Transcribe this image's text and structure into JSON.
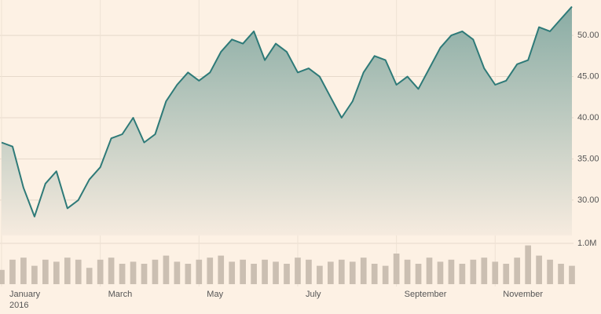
{
  "chart_data": [
    {
      "type": "area",
      "categories": [
        "January",
        null,
        null,
        null,
        null,
        null,
        null,
        null,
        null,
        "March",
        null,
        null,
        null,
        null,
        null,
        null,
        null,
        null,
        "May",
        null,
        null,
        null,
        null,
        null,
        null,
        null,
        null,
        "July",
        null,
        null,
        null,
        null,
        null,
        null,
        null,
        null,
        "September",
        null,
        null,
        null,
        null,
        null,
        null,
        null,
        null,
        "November",
        null,
        null,
        null,
        null,
        null,
        null,
        null
      ],
      "x_sublabel": "2016",
      "values": [
        37,
        36.5,
        31.5,
        28,
        32,
        33.5,
        29,
        30,
        32.5,
        34,
        37.5,
        38,
        40,
        37,
        38,
        42,
        44,
        45.5,
        44.5,
        45.5,
        48,
        49.5,
        49,
        50.5,
        47,
        49,
        48,
        45.5,
        46,
        45,
        42.5,
        40,
        42,
        45.5,
        47.5,
        47,
        44,
        45,
        43.5,
        46,
        48.5,
        50,
        50.5,
        49.5,
        46,
        44,
        44.5,
        46.5,
        47,
        51,
        50.5,
        52,
        53.5
      ],
      "color": "#2e7a78",
      "ylim": [
        25.7,
        54.3
      ],
      "yticks": [
        {
          "value": 30,
          "label": "30.00"
        },
        {
          "value": 35,
          "label": "35.00"
        },
        {
          "value": 40,
          "label": "40.00"
        },
        {
          "value": 45,
          "label": "45.00"
        },
        {
          "value": 50,
          "label": "50.00"
        }
      ],
      "grid": true
    },
    {
      "type": "bar",
      "values": [
        0.35,
        0.6,
        0.65,
        0.45,
        0.6,
        0.55,
        0.65,
        0.6,
        0.4,
        0.6,
        0.65,
        0.5,
        0.55,
        0.5,
        0.6,
        0.7,
        0.55,
        0.5,
        0.6,
        0.65,
        0.7,
        0.55,
        0.6,
        0.5,
        0.6,
        0.55,
        0.5,
        0.65,
        0.6,
        0.45,
        0.55,
        0.6,
        0.55,
        0.65,
        0.5,
        0.45,
        0.75,
        0.6,
        0.5,
        0.65,
        0.55,
        0.6,
        0.5,
        0.6,
        0.65,
        0.55,
        0.5,
        0.65,
        0.95,
        0.7,
        0.6,
        0.5,
        0.45
      ],
      "color": "#cbbfb2",
      "ylim": [
        0,
        1.2
      ],
      "yticks": [
        {
          "value": 1,
          "label": "1.0M"
        }
      ],
      "grid": true
    }
  ]
}
